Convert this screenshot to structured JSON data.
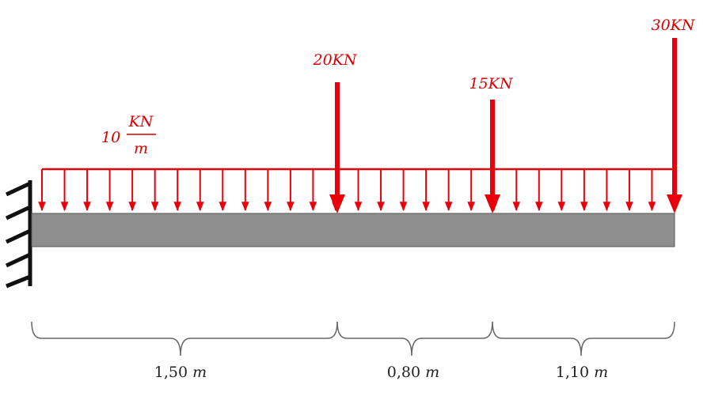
{
  "colors": {
    "load": "#e8000b",
    "beam_fill": "#8f8f8f",
    "beam_stroke": "#555555",
    "support": "#111111",
    "dimension": "#666666",
    "text_dark": "#222222"
  },
  "distributed_load": {
    "value": "10",
    "unit_numerator": "KN",
    "unit_denominator": "m"
  },
  "point_loads": [
    {
      "label": "20KN"
    },
    {
      "label": "15KN"
    },
    {
      "label": "30KN"
    }
  ],
  "dimensions": [
    {
      "value": "1,50",
      "unit": "m"
    },
    {
      "value": "0,80",
      "unit": "m"
    },
    {
      "value": "1,10",
      "unit": "m"
    }
  ],
  "support": {
    "type": "fixed",
    "icon": "fixed-support-icon"
  }
}
